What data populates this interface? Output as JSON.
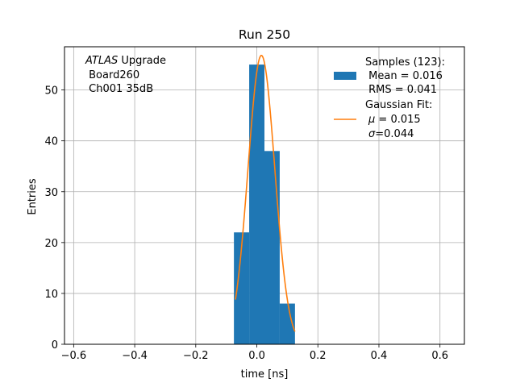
{
  "chart_data": {
    "type": "bar",
    "title": "Run 250",
    "xlabel": "time [ns]",
    "ylabel": "Entries",
    "xlim": [
      -0.63,
      0.68
    ],
    "ylim": [
      0,
      58.5
    ],
    "grid": true,
    "xticks": [
      -0.6,
      -0.4,
      -0.2,
      0.0,
      0.2,
      0.4,
      0.6
    ],
    "xtick_labels": [
      "−0.6",
      "−0.4",
      "−0.2",
      "0.0",
      "0.2",
      "0.4",
      "0.6"
    ],
    "yticks": [
      0,
      10,
      20,
      30,
      40,
      50
    ],
    "ytick_labels": [
      "0",
      "10",
      "20",
      "30",
      "40",
      "50"
    ],
    "histogram": {
      "name": "Samples (123):",
      "color": "#1f77b4",
      "bins": [
        {
          "x0": -0.075,
          "x1": -0.025,
          "count": 22
        },
        {
          "x0": -0.025,
          "x1": 0.025,
          "count": 55
        },
        {
          "x0": 0.025,
          "x1": 0.075,
          "count": 38
        },
        {
          "x0": 0.075,
          "x1": 0.125,
          "count": 8
        }
      ]
    },
    "fit": {
      "name": "Gaussian Fit:",
      "color": "#ff7f0e",
      "amplitude": 56.8,
      "mu": 0.015,
      "sigma": 0.044,
      "x_range": [
        -0.07,
        0.125
      ]
    },
    "annotation": {
      "line1_italic": "ATLAS",
      "line1_rest": " Upgrade",
      "line2": " Board260",
      "line3": " Ch001 35dB"
    },
    "legend": {
      "position": "top-right",
      "entry1_line1": "Samples (123):",
      "entry1_line2": " Mean = 0.016",
      "entry1_line3": " RMS = 0.041",
      "entry2_line1": "Gaussian Fit:",
      "entry2_mu_symbol": "μ",
      "entry2_mu_text": " = 0.015",
      "entry2_sigma_symbol": "σ",
      "entry2_sigma_text": "=0.044"
    }
  }
}
